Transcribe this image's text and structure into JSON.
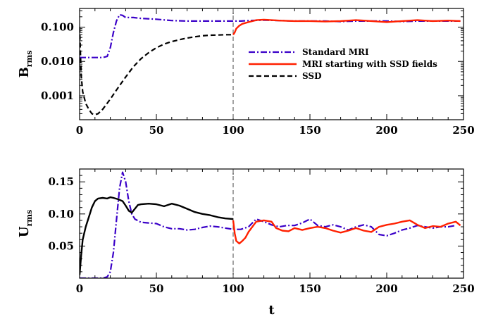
{
  "chart_data": [
    {
      "type": "line",
      "ylabel": "B",
      "ylabel_sub": "rms",
      "xlim": [
        0,
        250
      ],
      "ylim": [
        0.0002,
        0.35
      ],
      "yscale": "log",
      "xticks": [
        0,
        50,
        100,
        150,
        200,
        250
      ],
      "xtick_labels": [
        "0",
        "50",
        "100",
        "150",
        "200",
        "250"
      ],
      "yticks": [
        0.001,
        0.01,
        0.1
      ],
      "ytick_labels": [
        "0.001",
        "0.010",
        "0.100"
      ],
      "vline_x": 100,
      "legend_position": "center-right",
      "series": [
        {
          "name": "Standard MRI",
          "color": "#3a00c8",
          "style": "dash-dot",
          "points": [
            [
              0,
              0.013
            ],
            [
              5,
              0.013
            ],
            [
              10,
              0.013
            ],
            [
              15,
              0.013
            ],
            [
              18,
              0.014
            ],
            [
              20,
              0.025
            ],
            [
              22,
              0.07
            ],
            [
              24,
              0.15
            ],
            [
              26,
              0.23
            ],
            [
              28,
              0.22
            ],
            [
              30,
              0.19
            ],
            [
              35,
              0.19
            ],
            [
              40,
              0.18
            ],
            [
              50,
              0.17
            ],
            [
              60,
              0.155
            ],
            [
              70,
              0.15
            ],
            [
              80,
              0.15
            ],
            [
              90,
              0.15
            ],
            [
              100,
              0.15
            ],
            [
              105,
              0.15
            ],
            [
              110,
              0.155
            ],
            [
              120,
              0.16
            ],
            [
              130,
              0.155
            ],
            [
              140,
              0.15
            ],
            [
              150,
              0.15
            ],
            [
              160,
              0.15
            ],
            [
              170,
              0.145
            ],
            [
              180,
              0.15
            ],
            [
              190,
              0.15
            ],
            [
              200,
              0.15
            ],
            [
              210,
              0.145
            ],
            [
              220,
              0.15
            ],
            [
              230,
              0.15
            ],
            [
              240,
              0.15
            ],
            [
              248,
              0.15
            ]
          ]
        },
        {
          "name": "MRI starting with SSD fields",
          "color": "#ff2000",
          "style": "solid",
          "points": [
            [
              100,
              0.06
            ],
            [
              101,
              0.07
            ],
            [
              102,
              0.09
            ],
            [
              104,
              0.11
            ],
            [
              106,
              0.125
            ],
            [
              110,
              0.14
            ],
            [
              115,
              0.16
            ],
            [
              120,
              0.165
            ],
            [
              125,
              0.16
            ],
            [
              130,
              0.155
            ],
            [
              140,
              0.15
            ],
            [
              150,
              0.15
            ],
            [
              160,
              0.145
            ],
            [
              170,
              0.15
            ],
            [
              180,
              0.16
            ],
            [
              185,
              0.155
            ],
            [
              190,
              0.15
            ],
            [
              200,
              0.14
            ],
            [
              210,
              0.15
            ],
            [
              220,
              0.16
            ],
            [
              230,
              0.15
            ],
            [
              240,
              0.155
            ],
            [
              248,
              0.15
            ]
          ]
        },
        {
          "name": "SSD",
          "color": "#000000",
          "style": "dashed",
          "points": [
            [
              0,
              0.1
            ],
            [
              1,
              0.004
            ],
            [
              2,
              0.0013
            ],
            [
              4,
              0.0006
            ],
            [
              6,
              0.0004
            ],
            [
              8,
              0.0003
            ],
            [
              10,
              0.00028
            ],
            [
              12,
              0.0003
            ],
            [
              15,
              0.0004
            ],
            [
              20,
              0.0008
            ],
            [
              25,
              0.0017
            ],
            [
              30,
              0.0035
            ],
            [
              35,
              0.007
            ],
            [
              40,
              0.012
            ],
            [
              45,
              0.018
            ],
            [
              50,
              0.025
            ],
            [
              55,
              0.032
            ],
            [
              60,
              0.038
            ],
            [
              65,
              0.043
            ],
            [
              70,
              0.048
            ],
            [
              75,
              0.052
            ],
            [
              80,
              0.056
            ],
            [
              85,
              0.058
            ],
            [
              90,
              0.059
            ],
            [
              95,
              0.06
            ],
            [
              100,
              0.06
            ]
          ]
        }
      ]
    },
    {
      "type": "line",
      "xlabel": "t",
      "ylabel": "U",
      "ylabel_sub": "rms",
      "xlim": [
        0,
        250
      ],
      "ylim": [
        0,
        0.17
      ],
      "xticks": [
        0,
        50,
        100,
        150,
        200,
        250
      ],
      "xtick_labels": [
        "0",
        "50",
        "100",
        "150",
        "200",
        "250"
      ],
      "yticks": [
        0.05,
        0.1,
        0.15
      ],
      "ytick_labels": [
        "0.05",
        "0.10",
        "0.15"
      ],
      "vline_x": 100,
      "series": [
        {
          "name": "Standard MRI",
          "color": "#3a00c8",
          "style": "dash-dot",
          "points": [
            [
              0,
              0.0
            ],
            [
              15,
              0.0
            ],
            [
              18,
              0.002
            ],
            [
              20,
              0.01
            ],
            [
              22,
              0.04
            ],
            [
              24,
              0.09
            ],
            [
              26,
              0.14
            ],
            [
              28,
              0.165
            ],
            [
              30,
              0.15
            ],
            [
              32,
              0.12
            ],
            [
              34,
              0.1
            ],
            [
              36,
              0.092
            ],
            [
              40,
              0.087
            ],
            [
              45,
              0.086
            ],
            [
              50,
              0.085
            ],
            [
              55,
              0.08
            ],
            [
              60,
              0.077
            ],
            [
              65,
              0.077
            ],
            [
              70,
              0.075
            ],
            [
              75,
              0.076
            ],
            [
              80,
              0.079
            ],
            [
              85,
              0.081
            ],
            [
              90,
              0.08
            ],
            [
              95,
              0.078
            ],
            [
              100,
              0.076
            ],
            [
              105,
              0.076
            ],
            [
              110,
              0.08
            ],
            [
              115,
              0.092
            ],
            [
              120,
              0.088
            ],
            [
              125,
              0.083
            ],
            [
              130,
              0.08
            ],
            [
              135,
              0.082
            ],
            [
              140,
              0.082
            ],
            [
              145,
              0.086
            ],
            [
              150,
              0.092
            ],
            [
              155,
              0.082
            ],
            [
              160,
              0.08
            ],
            [
              165,
              0.083
            ],
            [
              170,
              0.08
            ],
            [
              175,
              0.075
            ],
            [
              180,
              0.08
            ],
            [
              185,
              0.083
            ],
            [
              190,
              0.08
            ],
            [
              195,
              0.068
            ],
            [
              200,
              0.066
            ],
            [
              205,
              0.07
            ],
            [
              210,
              0.075
            ],
            [
              215,
              0.078
            ],
            [
              220,
              0.082
            ],
            [
              225,
              0.08
            ],
            [
              230,
              0.078
            ],
            [
              235,
              0.08
            ],
            [
              240,
              0.08
            ],
            [
              245,
              0.082
            ]
          ]
        },
        {
          "name": "MRI starting with SSD fields",
          "color": "#ff2000",
          "style": "solid",
          "points": [
            [
              100,
              0.09
            ],
            [
              101,
              0.07
            ],
            [
              102,
              0.058
            ],
            [
              104,
              0.054
            ],
            [
              106,
              0.058
            ],
            [
              108,
              0.063
            ],
            [
              110,
              0.072
            ],
            [
              115,
              0.088
            ],
            [
              120,
              0.09
            ],
            [
              125,
              0.088
            ],
            [
              128,
              0.078
            ],
            [
              132,
              0.074
            ],
            [
              136,
              0.073
            ],
            [
              140,
              0.078
            ],
            [
              145,
              0.075
            ],
            [
              150,
              0.078
            ],
            [
              155,
              0.08
            ],
            [
              160,
              0.078
            ],
            [
              165,
              0.074
            ],
            [
              170,
              0.071
            ],
            [
              175,
              0.074
            ],
            [
              180,
              0.078
            ],
            [
              185,
              0.074
            ],
            [
              190,
              0.072
            ],
            [
              195,
              0.08
            ],
            [
              200,
              0.083
            ],
            [
              205,
              0.085
            ],
            [
              210,
              0.088
            ],
            [
              215,
              0.09
            ],
            [
              220,
              0.083
            ],
            [
              225,
              0.078
            ],
            [
              230,
              0.081
            ],
            [
              235,
              0.08
            ],
            [
              240,
              0.085
            ],
            [
              245,
              0.088
            ],
            [
              248,
              0.082
            ]
          ]
        },
        {
          "name": "SSD",
          "color": "#000000",
          "style": "solid",
          "points": [
            [
              0,
              0.005
            ],
            [
              1,
              0.035
            ],
            [
              2,
              0.06
            ],
            [
              4,
              0.08
            ],
            [
              6,
              0.095
            ],
            [
              8,
              0.11
            ],
            [
              10,
              0.12
            ],
            [
              12,
              0.124
            ],
            [
              15,
              0.125
            ],
            [
              18,
              0.124
            ],
            [
              20,
              0.126
            ],
            [
              22,
              0.125
            ],
            [
              25,
              0.123
            ],
            [
              28,
              0.12
            ],
            [
              30,
              0.113
            ],
            [
              32,
              0.105
            ],
            [
              34,
              0.102
            ],
            [
              36,
              0.108
            ],
            [
              38,
              0.114
            ],
            [
              40,
              0.115
            ],
            [
              45,
              0.116
            ],
            [
              50,
              0.115
            ],
            [
              55,
              0.112
            ],
            [
              60,
              0.116
            ],
            [
              65,
              0.113
            ],
            [
              70,
              0.108
            ],
            [
              75,
              0.103
            ],
            [
              80,
              0.1
            ],
            [
              85,
              0.098
            ],
            [
              90,
              0.095
            ],
            [
              95,
              0.093
            ],
            [
              100,
              0.092
            ]
          ]
        }
      ]
    }
  ]
}
